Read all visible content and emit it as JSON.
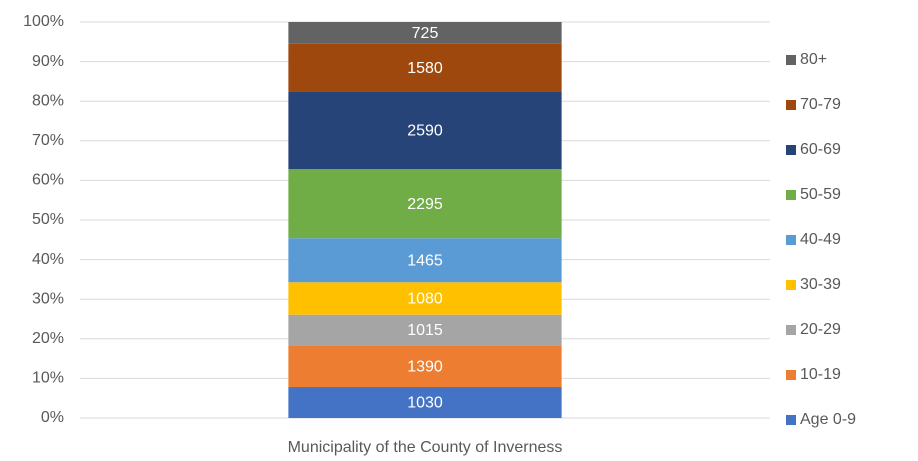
{
  "chart_data": {
    "type": "bar",
    "stacked": "percent",
    "categories": [
      "Municipality of the County of Inverness"
    ],
    "series": [
      {
        "name": "Age 0-9",
        "color": "#4472c4",
        "values": [
          1030
        ]
      },
      {
        "name": "10-19",
        "color": "#ed7d31",
        "values": [
          1390
        ]
      },
      {
        "name": "20-29",
        "color": "#a5a5a5",
        "values": [
          1015
        ]
      },
      {
        "name": "30-39",
        "color": "#ffc000",
        "values": [
          1080
        ]
      },
      {
        "name": "40-49",
        "color": "#5b9bd5",
        "values": [
          1465
        ]
      },
      {
        "name": "50-59",
        "color": "#70ad47",
        "values": [
          2295
        ]
      },
      {
        "name": "60-69",
        "color": "#264478",
        "values": [
          2590
        ]
      },
      {
        "name": "70-79",
        "color": "#9e480e",
        "values": [
          1580
        ]
      },
      {
        "name": "80+",
        "color": "#636363",
        "values": [
          725
        ]
      }
    ],
    "ylim": [
      0,
      100
    ],
    "yticks": [
      {
        "value": 0,
        "label": "0%"
      },
      {
        "value": 10,
        "label": "10%"
      },
      {
        "value": 20,
        "label": "20%"
      },
      {
        "value": 30,
        "label": "30%"
      },
      {
        "value": 40,
        "label": "40%"
      },
      {
        "value": 50,
        "label": "50%"
      },
      {
        "value": 60,
        "label": "60%"
      },
      {
        "value": 70,
        "label": "70%"
      },
      {
        "value": 80,
        "label": "80%"
      },
      {
        "value": 90,
        "label": "90%"
      },
      {
        "value": 100,
        "label": "100%"
      }
    ],
    "grid": true,
    "legend": "right"
  }
}
